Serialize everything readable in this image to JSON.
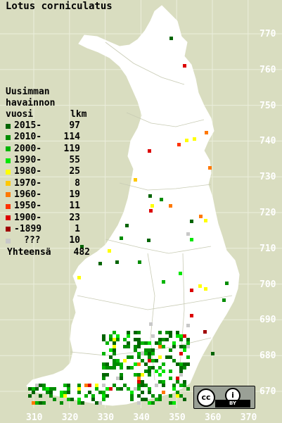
{
  "title": "Lotus corniculatus",
  "legend": {
    "header_line1": "Uusimman",
    "header_line2": "havainnon",
    "header_line3_left": "vuosi",
    "header_line3_right": "lkm",
    "items": [
      {
        "period": "2015-",
        "count": "97",
        "color": "#006400"
      },
      {
        "period": "2010-",
        "count": "114",
        "color": "#008c00"
      },
      {
        "period": "2000-",
        "count": "119",
        "color": "#00b400"
      },
      {
        "period": "1990-",
        "count": "55",
        "color": "#00e600"
      },
      {
        "period": "1980-",
        "count": "25",
        "color": "#ffff00"
      },
      {
        "period": "1970-",
        "count": "8",
        "color": "#ffc800"
      },
      {
        "period": "1960-",
        "count": "19",
        "color": "#ff7800"
      },
      {
        "period": "1950-",
        "count": "11",
        "color": "#ff3200"
      },
      {
        "period": "1900-",
        "count": "23",
        "color": "#dc0000"
      },
      {
        "period": "-1899",
        "count": "1",
        "color": "#a00000"
      },
      {
        "period": "???",
        "count": "10",
        "color": "#c8c8c8"
      }
    ],
    "total_label": "Yhteensä",
    "total_count": "482"
  },
  "y_axis_labels": [
    "770",
    "760",
    "750",
    "740",
    "730",
    "720",
    "710",
    "700",
    "690",
    "680",
    "670"
  ],
  "x_axis_labels": [
    "310",
    "320",
    "330",
    "340",
    "350",
    "360",
    "370"
  ],
  "license": {
    "cc": "cc",
    "by": "BY"
  }
}
